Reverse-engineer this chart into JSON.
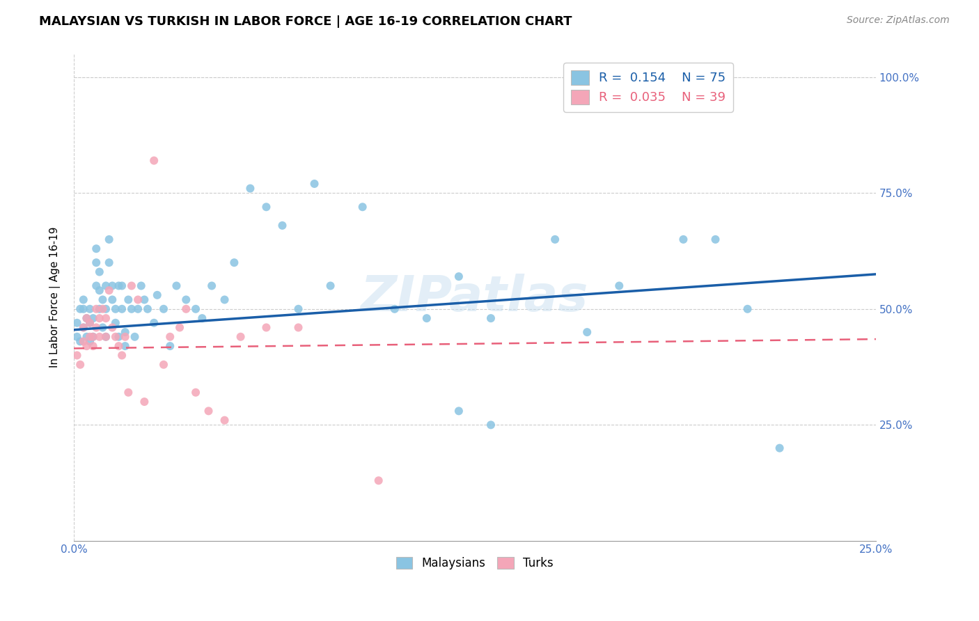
{
  "title": "MALAYSIAN VS TURKISH IN LABOR FORCE | AGE 16-19 CORRELATION CHART",
  "source": "Source: ZipAtlas.com",
  "ylabel": "In Labor Force | Age 16-19",
  "xlim": [
    0.0,
    0.25
  ],
  "ylim": [
    0.0,
    1.05
  ],
  "blue_color": "#8ac4e2",
  "pink_color": "#f4a6b8",
  "blue_line_color": "#1a5ea8",
  "pink_line_color": "#e8607a",
  "tick_color": "#4472c4",
  "watermark": "ZIPatlas",
  "legend_R_blue": "R =  0.154",
  "legend_N_blue": "N = 75",
  "legend_R_pink": "R =  0.035",
  "legend_N_pink": "N = 39",
  "malaysians_x": [
    0.001,
    0.001,
    0.002,
    0.002,
    0.003,
    0.003,
    0.003,
    0.004,
    0.004,
    0.005,
    0.005,
    0.005,
    0.006,
    0.006,
    0.007,
    0.007,
    0.007,
    0.008,
    0.008,
    0.008,
    0.009,
    0.009,
    0.01,
    0.01,
    0.01,
    0.011,
    0.011,
    0.012,
    0.012,
    0.013,
    0.013,
    0.014,
    0.014,
    0.015,
    0.015,
    0.016,
    0.016,
    0.017,
    0.018,
    0.019,
    0.02,
    0.021,
    0.022,
    0.023,
    0.025,
    0.026,
    0.028,
    0.03,
    0.032,
    0.035,
    0.038,
    0.04,
    0.043,
    0.047,
    0.05,
    0.055,
    0.06,
    0.065,
    0.07,
    0.075,
    0.08,
    0.09,
    0.1,
    0.11,
    0.12,
    0.13,
    0.15,
    0.17,
    0.19,
    0.2,
    0.21,
    0.22,
    0.12,
    0.13,
    0.16
  ],
  "malaysians_y": [
    0.44,
    0.47,
    0.43,
    0.5,
    0.46,
    0.5,
    0.52,
    0.44,
    0.48,
    0.43,
    0.47,
    0.5,
    0.44,
    0.48,
    0.55,
    0.6,
    0.63,
    0.5,
    0.54,
    0.58,
    0.46,
    0.52,
    0.44,
    0.5,
    0.55,
    0.6,
    0.65,
    0.52,
    0.55,
    0.5,
    0.47,
    0.44,
    0.55,
    0.5,
    0.55,
    0.45,
    0.42,
    0.52,
    0.5,
    0.44,
    0.5,
    0.55,
    0.52,
    0.5,
    0.47,
    0.53,
    0.5,
    0.42,
    0.55,
    0.52,
    0.5,
    0.48,
    0.55,
    0.52,
    0.6,
    0.76,
    0.72,
    0.68,
    0.5,
    0.77,
    0.55,
    0.72,
    0.5,
    0.48,
    0.57,
    0.48,
    0.65,
    0.55,
    0.65,
    0.65,
    0.5,
    0.2,
    0.28,
    0.25,
    0.45
  ],
  "turks_x": [
    0.001,
    0.002,
    0.003,
    0.003,
    0.004,
    0.004,
    0.005,
    0.005,
    0.006,
    0.006,
    0.007,
    0.007,
    0.008,
    0.008,
    0.009,
    0.01,
    0.01,
    0.011,
    0.012,
    0.013,
    0.014,
    0.015,
    0.016,
    0.017,
    0.018,
    0.02,
    0.022,
    0.025,
    0.028,
    0.03,
    0.033,
    0.035,
    0.038,
    0.042,
    0.047,
    0.052,
    0.06,
    0.07,
    0.095
  ],
  "turks_y": [
    0.4,
    0.38,
    0.43,
    0.46,
    0.42,
    0.48,
    0.44,
    0.47,
    0.42,
    0.44,
    0.46,
    0.5,
    0.44,
    0.48,
    0.5,
    0.44,
    0.48,
    0.54,
    0.46,
    0.44,
    0.42,
    0.4,
    0.44,
    0.32,
    0.55,
    0.52,
    0.3,
    0.82,
    0.38,
    0.44,
    0.46,
    0.5,
    0.32,
    0.28,
    0.26,
    0.44,
    0.46,
    0.46,
    0.13
  ]
}
